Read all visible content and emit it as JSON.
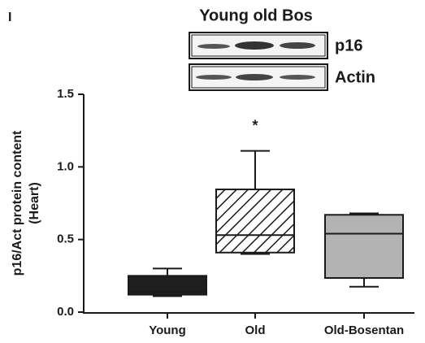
{
  "chart_data": {
    "type": "box",
    "panel_label": "I",
    "blot_title": "Young old Bos",
    "blot_labels": [
      "p16",
      "Actin"
    ],
    "ylabel": [
      "p16/Act protein content",
      "(Heart)"
    ],
    "categories": [
      "Young",
      "Old",
      "Old-Bosentan"
    ],
    "boxes": [
      {
        "min": 0.11,
        "q1": 0.12,
        "median": 0.14,
        "q3": 0.25,
        "max": 0.3
      },
      {
        "min": 0.4,
        "q1": 0.41,
        "median": 0.53,
        "q3": 0.845,
        "max": 1.11
      },
      {
        "min": 0.175,
        "q1": 0.235,
        "median": 0.54,
        "q3": 0.67,
        "max": 0.68
      }
    ],
    "fills": [
      "#1e1e1e",
      "hatch",
      "#b3b3b3"
    ],
    "annotations": [
      "*"
    ],
    "ylim": [
      0,
      1.5
    ],
    "yticks": [
      {
        "value": 0,
        "label": "0.0"
      },
      0.5,
      {
        "value": 1,
        "label": "1.0"
      },
      1.5
    ]
  }
}
